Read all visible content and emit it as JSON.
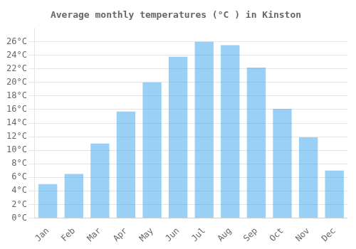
{
  "chart_data": {
    "type": "bar",
    "title": "Average monthly temperatures (°C ) in Kinston",
    "categories": [
      "Jan",
      "Feb",
      "Mar",
      "Apr",
      "May",
      "Jun",
      "Jul",
      "Aug",
      "Sep",
      "Oct",
      "Nov",
      "Dec"
    ],
    "values": [
      5.0,
      6.5,
      11.0,
      15.7,
      20.0,
      23.8,
      26.0,
      25.5,
      22.2,
      16.1,
      11.9,
      7.0
    ],
    "ylim": [
      0,
      28
    ],
    "yticks": [
      {
        "value": 0,
        "label": "0°C"
      },
      {
        "value": 2,
        "label": "2°C"
      },
      {
        "value": 4,
        "label": "4°C"
      },
      {
        "value": 6,
        "label": "6°C"
      },
      {
        "value": 8,
        "label": "8°C"
      },
      {
        "value": 10,
        "label": "10°C"
      },
      {
        "value": 12,
        "label": "12°C"
      },
      {
        "value": 14,
        "label": "14°C"
      },
      {
        "value": 16,
        "label": "16°C"
      },
      {
        "value": 18,
        "label": "18°C"
      },
      {
        "value": 20,
        "label": "20°C"
      },
      {
        "value": 22,
        "label": "22°C"
      },
      {
        "value": 24,
        "label": "24°C"
      },
      {
        "value": 26,
        "label": "26°C"
      }
    ],
    "grid": true
  }
}
